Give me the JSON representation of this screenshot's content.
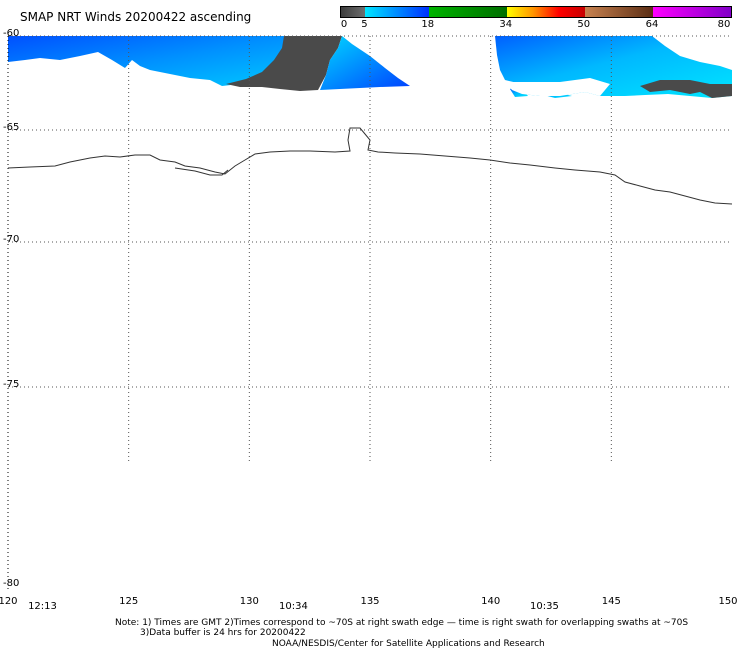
{
  "title": "SMAP NRT Winds 20200422 ascending",
  "colorbar": {
    "tick_labels": [
      "0",
      "5",
      "18",
      "34",
      "50",
      "64",
      "80"
    ],
    "tick_values": [
      0,
      5,
      18,
      34,
      50,
      64,
      80
    ],
    "range": [
      0,
      80
    ],
    "segments": [
      {
        "from": 0,
        "to": 5,
        "colors": [
          "#3c3c3c",
          "#6e6e6e"
        ]
      },
      {
        "from": 5,
        "to": 18,
        "colors": [
          "#00e6ff",
          "#0030ff"
        ]
      },
      {
        "from": 18,
        "to": 34,
        "colors": [
          "#00b400",
          "#006e00"
        ]
      },
      {
        "from": 34,
        "to": 50,
        "colors": [
          "#ffff00",
          "#ff9600",
          "#ff0000",
          "#c80000"
        ]
      },
      {
        "from": 50,
        "to": 64,
        "colors": [
          "#c88250",
          "#5a2d14"
        ]
      },
      {
        "from": 64,
        "to": 80,
        "colors": [
          "#ff00ff",
          "#8200c8"
        ]
      }
    ]
  },
  "axes": {
    "lon_labels": [
      "120",
      "125",
      "130",
      "135",
      "140",
      "145",
      "150"
    ],
    "lon_values": [
      120,
      125,
      130,
      135,
      140,
      145,
      150
    ],
    "lat_labels": [
      "-60",
      "-65",
      "-70",
      "-75",
      "-80"
    ],
    "lat_values": [
      -60,
      -65,
      -70,
      -75,
      -80
    ]
  },
  "swath_times": [
    {
      "label": "12:13",
      "lon": 120.5
    },
    {
      "label": "10:34",
      "lon": 130.9
    },
    {
      "label": "10:35",
      "lon": 141.3
    }
  ],
  "note_lines": [
    "Note: 1) Times are GMT 2)Times correspond to ~70S at right swath edge — time is right swath for overlapping swaths at ~70S",
    "3)Data buffer is 24 hrs for 20200422",
    "NOAA/NESDIS/Center for Satellite Applications and Research"
  ]
}
